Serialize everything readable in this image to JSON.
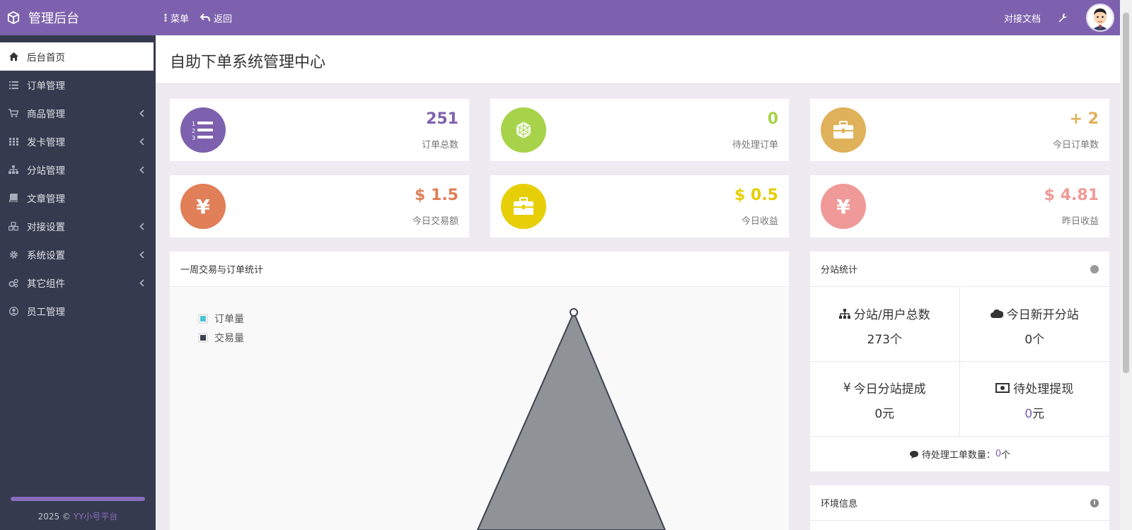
{
  "header": {
    "brand_title": "管理后台",
    "menu_label": "菜单",
    "back_label": "返回",
    "doc_label": "对接文档"
  },
  "sidebar": {
    "items": [
      {
        "label": "后台首页",
        "icon": "home-icon",
        "active": true
      },
      {
        "label": "订单管理",
        "icon": "list-icon"
      },
      {
        "label": "商品管理",
        "icon": "cart-icon",
        "submenu": true
      },
      {
        "label": "发卡管理",
        "icon": "grid-icon",
        "submenu": true
      },
      {
        "label": "分站管理",
        "icon": "sitemap-icon",
        "submenu": true
      },
      {
        "label": "文章管理",
        "icon": "book-icon"
      },
      {
        "label": "对接设置",
        "icon": "cubes-icon",
        "submenu": true
      },
      {
        "label": "系统设置",
        "icon": "gear-icon",
        "submenu": true
      },
      {
        "label": "其它组件",
        "icon": "cogs-icon",
        "submenu": true
      },
      {
        "label": "员工管理",
        "icon": "user-circle-icon"
      }
    ],
    "footer_year": "2025 ©",
    "footer_link": "YY小号平台"
  },
  "page": {
    "title": "自助下单系统管理中心"
  },
  "stats": [
    {
      "value": "251",
      "label": "订单总数",
      "color": "#7e61ae"
    },
    {
      "value": "0",
      "label": "待处理订单",
      "color": "#a7d34b"
    },
    {
      "value": "+ 2",
      "label": "今日订单数",
      "color": "#dfb15a"
    },
    {
      "value": "$ 1.5",
      "label": "今日交易额",
      "color": "#e07f58"
    },
    {
      "value": "$ 0.5",
      "label": "今日收益",
      "color": "#e6cf06"
    },
    {
      "value": "$ 4.81",
      "label": "昨日收益",
      "color": "#ef9a98"
    }
  ],
  "chart_panel": {
    "title": "一周交易与订单统计",
    "legend": [
      "订单量",
      "交易量"
    ]
  },
  "substation": {
    "title": "分站统计",
    "cells": [
      {
        "label": "分站/用户总数",
        "value": "273个"
      },
      {
        "label": "今日新开分站",
        "value": "0个"
      },
      {
        "label": "今日分站提成",
        "value": "0元"
      },
      {
        "label": "待处理提现",
        "value_num": "0",
        "value_unit": "元"
      }
    ],
    "ticket_label": "待处理工单数量：",
    "ticket_value": "0",
    "ticket_unit": " 个"
  },
  "env": {
    "title": "环境信息"
  },
  "colors": {
    "brand": "#7e61ae",
    "sidebar": "#353a4e"
  }
}
